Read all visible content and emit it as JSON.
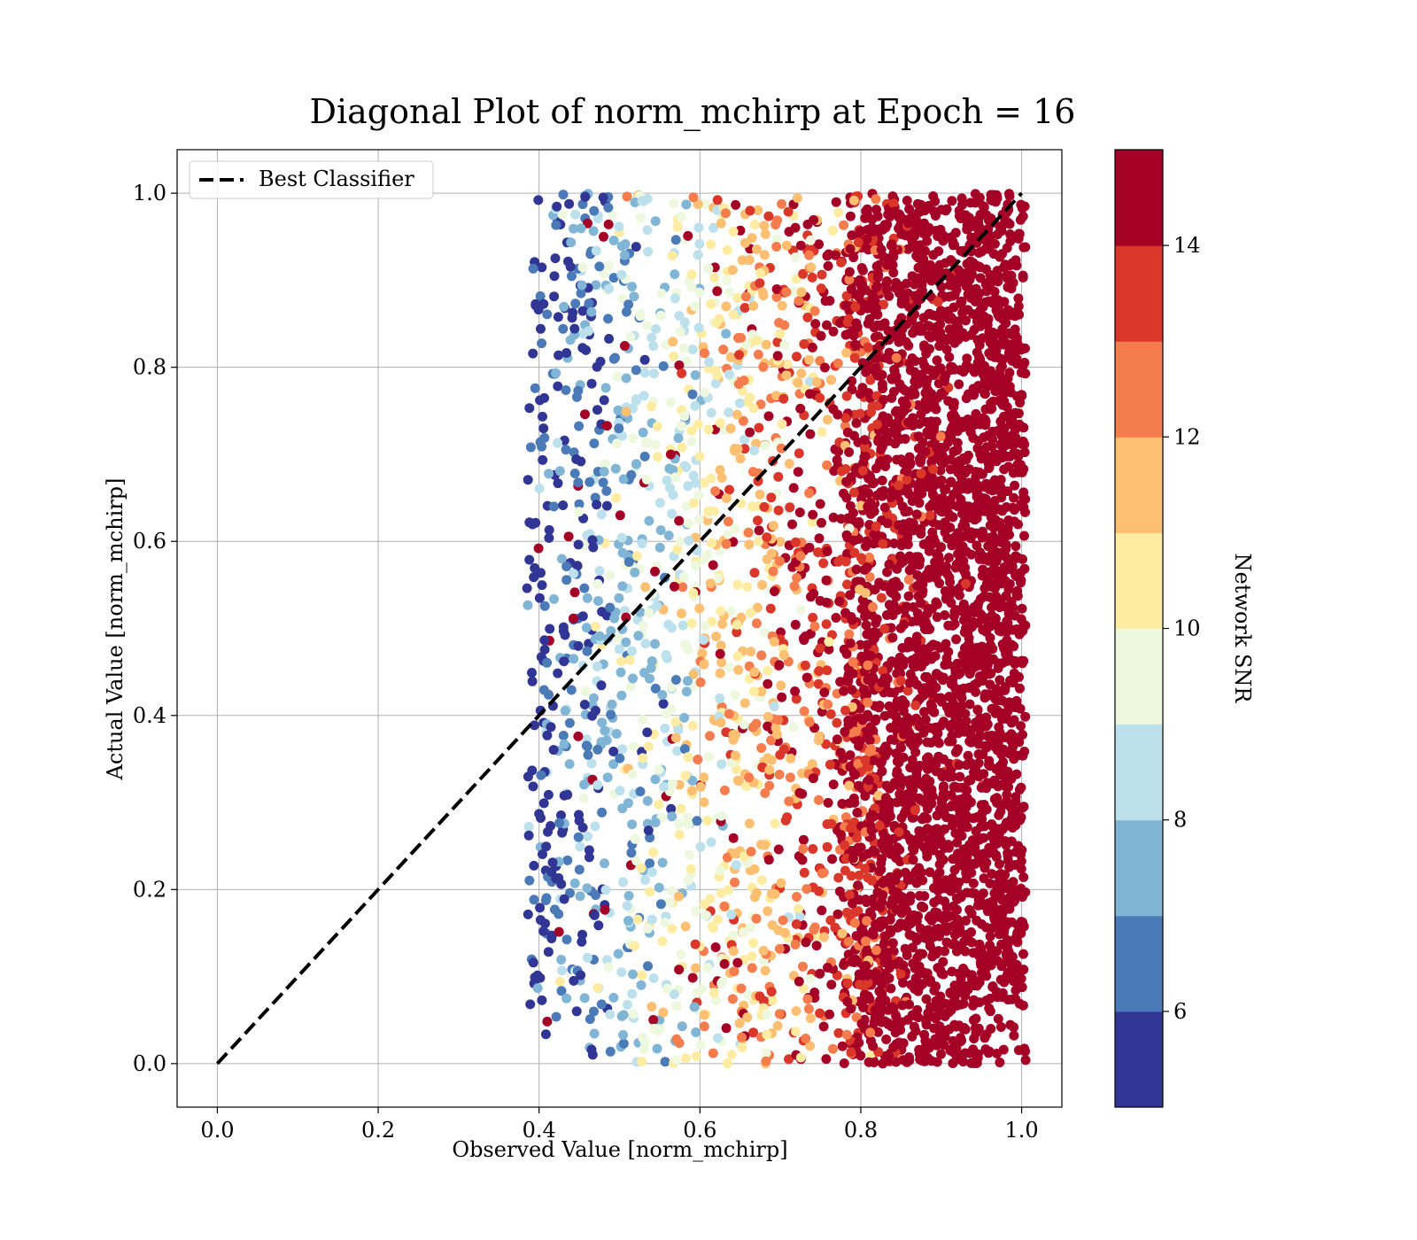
{
  "chart_data": {
    "type": "scatter",
    "title": "Diagonal Plot of norm_mchirp at Epoch = 16",
    "xlabel": "Observed Value [norm_mchirp]",
    "ylabel": "Actual Value [norm_mchirp]",
    "xlim": [
      -0.05,
      1.05
    ],
    "ylim": [
      -0.05,
      1.05
    ],
    "xticks": [
      "0.0",
      "0.2",
      "0.4",
      "0.6",
      "0.8",
      "1.0"
    ],
    "yticks": [
      "0.0",
      "0.2",
      "0.4",
      "0.6",
      "0.8",
      "1.0"
    ],
    "grid": true,
    "legend": {
      "position": "top-left",
      "entries": [
        "Best Classifier"
      ]
    },
    "reference_line": {
      "name": "Best Classifier",
      "style": "dashed",
      "color": "#000000",
      "x": [
        0.0,
        1.0
      ],
      "y": [
        0.0,
        1.0
      ]
    },
    "colorbar": {
      "label": "Network SNR",
      "range": [
        5,
        15
      ],
      "ticks": [
        "6",
        "8",
        "10",
        "12",
        "14"
      ],
      "bins": [
        {
          "from": 5,
          "to": 6,
          "color": "#313695"
        },
        {
          "from": 6,
          "to": 7,
          "color": "#4a7ab7"
        },
        {
          "from": 7,
          "to": 8,
          "color": "#81b5d6"
        },
        {
          "from": 8,
          "to": 9,
          "color": "#bce0ec"
        },
        {
          "from": 9,
          "to": 10,
          "color": "#edf8df"
        },
        {
          "from": 10,
          "to": 11,
          "color": "#fdeca2"
        },
        {
          "from": 11,
          "to": 12,
          "color": "#fdbf71"
        },
        {
          "from": 12,
          "to": 13,
          "color": "#f57c4d"
        },
        {
          "from": 13,
          "to": 14,
          "color": "#da372a"
        },
        {
          "from": 14,
          "to": 15,
          "color": "#a50026"
        }
      ]
    },
    "scatter_cloud": {
      "x_range": [
        0.37,
        1.0
      ],
      "y_range": [
        0.0,
        1.0
      ],
      "color_trend": "Network SNR rises with observed value: ~5 near x=0.40, ~10 near x=0.63, ~14+ for x>0.78"
    }
  }
}
